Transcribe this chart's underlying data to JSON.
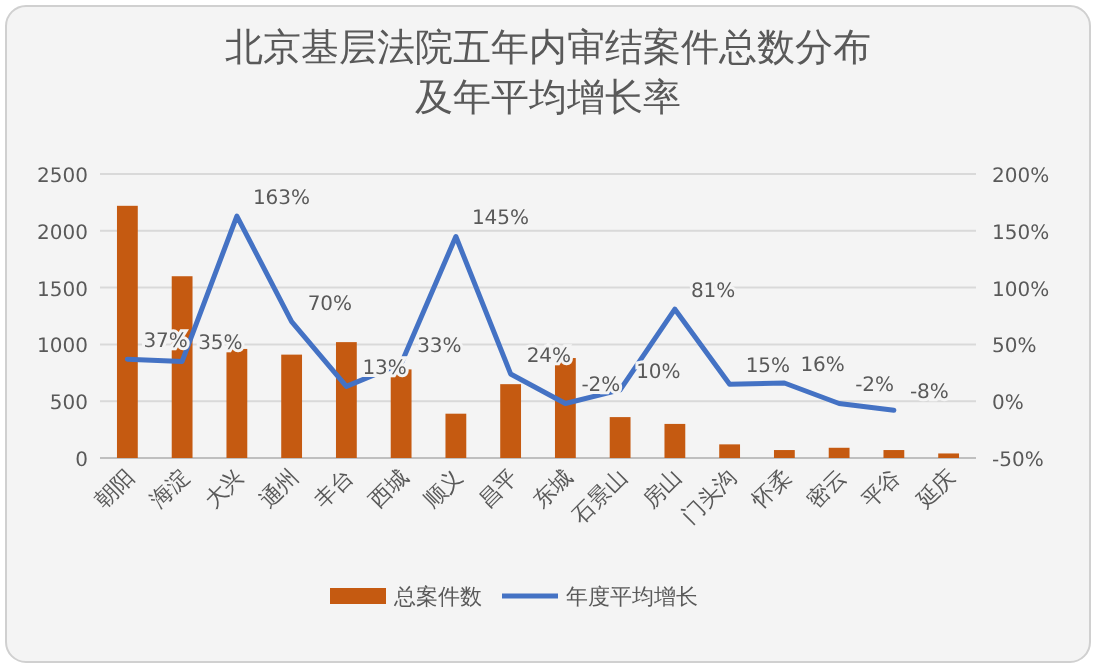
{
  "chart_data": {
    "type": "bar",
    "title": "北京基层法院五年内审结案件总数分布及年平均增长率",
    "categories": [
      "朝阳",
      "海淀",
      "大兴",
      "通州",
      "丰台",
      "西城",
      "顺义",
      "昌平",
      "东城",
      "石景山",
      "房山",
      "门头沟",
      "怀柔",
      "密云",
      "平谷",
      "延庆"
    ],
    "series": [
      {
        "name": "总案件数",
        "color": "#c55a11",
        "values": [
          2220,
          1600,
          960,
          910,
          1020,
          780,
          390,
          650,
          880,
          360,
          300,
          120,
          70,
          90,
          70,
          40
        ]
      },
      {
        "name": "年度平均增长",
        "type": "line",
        "axis": "y2",
        "color": "#4472c4",
        "values": [
          37,
          35,
          163,
          70,
          13,
          33,
          145,
          24,
          -2,
          10,
          81,
          15,
          16,
          -2,
          -8,
          null
        ],
        "value_labels": [
          "37%",
          "35%",
          "163%",
          "70%",
          "13%",
          "33%",
          "145%",
          "24%",
          "-2%",
          "10%",
          "81%",
          "15%",
          "16%",
          "-2%",
          "-8%",
          null
        ]
      }
    ],
    "ylim": [
      0,
      2500
    ],
    "yticks": [
      0,
      500,
      1000,
      1500,
      2000,
      2500
    ],
    "y2lim": [
      -50,
      200
    ],
    "y2ticks": [
      {
        "value": -50,
        "label": "-50%"
      },
      {
        "value": 0,
        "label": "0%"
      },
      {
        "value": 50,
        "label": "50%"
      },
      {
        "value": 100,
        "label": "100%"
      },
      {
        "value": 150,
        "label": "150%"
      },
      {
        "value": 200,
        "label": "200%"
      }
    ],
    "grid": "y",
    "legend": "bottom"
  }
}
